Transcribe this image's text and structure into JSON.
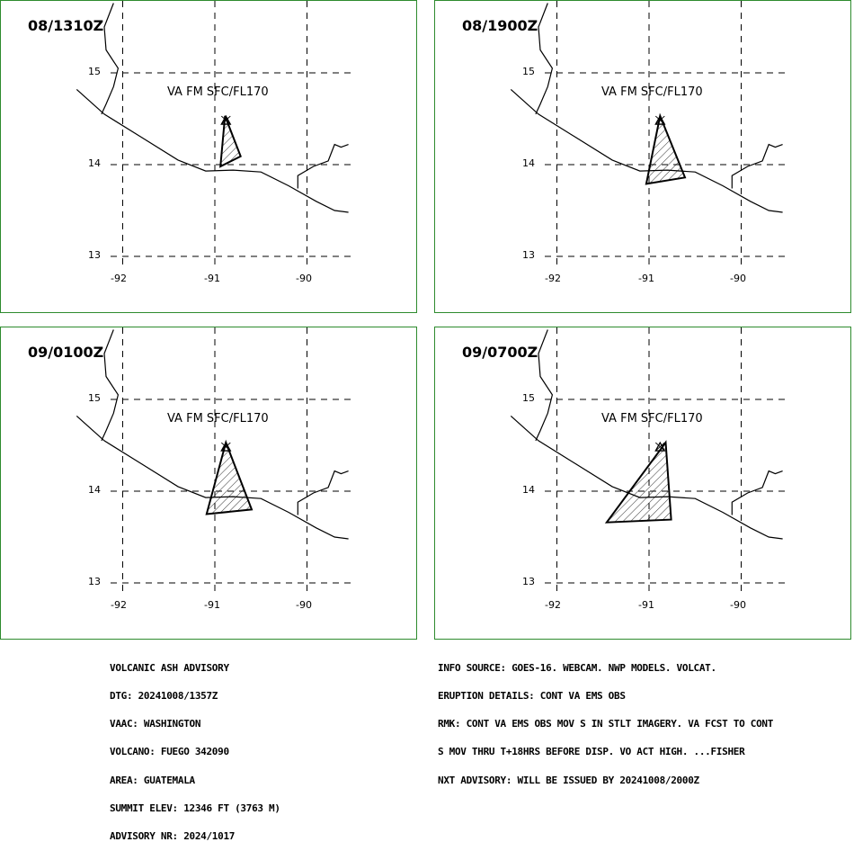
{
  "colors": {
    "border": "#2e8b2e",
    "lines": "#000000",
    "background": "#ffffff"
  },
  "panels": [
    {
      "time": "08/1310Z",
      "label": "VA FM SFC/FL170",
      "lat_labels": [
        "15",
        "14",
        "13"
      ],
      "lon_labels": [
        "-92",
        "-91",
        "-90"
      ],
      "ash_area": [
        [
          -90.89,
          14.53
        ],
        [
          -90.72,
          14.09
        ],
        [
          -90.94,
          13.98
        ]
      ]
    },
    {
      "time": "08/1900Z",
      "label": "VA FM SFC/FL170",
      "lat_labels": [
        "15",
        "14",
        "13"
      ],
      "lon_labels": [
        "-92",
        "-91",
        "-90"
      ],
      "ash_area": [
        [
          -90.88,
          14.53
        ],
        [
          -90.61,
          13.86
        ],
        [
          -91.03,
          13.79
        ]
      ]
    },
    {
      "time": "09/0100Z",
      "label": "VA FM SFC/FL170",
      "lat_labels": [
        "15",
        "14",
        "13"
      ],
      "lon_labels": [
        "-92",
        "-91",
        "-90"
      ],
      "ash_area": [
        [
          -90.88,
          14.53
        ],
        [
          -90.6,
          13.8
        ],
        [
          -91.09,
          13.75
        ]
      ]
    },
    {
      "time": "09/0700Z",
      "label": "VA FM SFC/FL170",
      "lat_labels": [
        "15",
        "14",
        "13"
      ],
      "lon_labels": [
        "-92",
        "-91",
        "-90"
      ],
      "ash_area": [
        [
          -90.82,
          14.53
        ],
        [
          -90.76,
          13.69
        ],
        [
          -91.46,
          13.66
        ]
      ]
    }
  ],
  "volcano": {
    "name": "FUEGO",
    "lon": -90.88,
    "lat": 14.47
  },
  "coastline": [
    [
      -92.5,
      14.82
    ],
    [
      -92.2,
      14.55
    ],
    [
      -91.8,
      14.3
    ],
    [
      -91.4,
      14.05
    ],
    [
      -91.1,
      13.93
    ],
    [
      -90.8,
      13.94
    ],
    [
      -90.5,
      13.92
    ],
    [
      -90.2,
      13.77
    ],
    [
      -89.9,
      13.6
    ],
    [
      -89.7,
      13.5
    ],
    [
      -89.55,
      13.48
    ]
  ],
  "border_mex_gtm": [
    [
      -92.1,
      15.76
    ],
    [
      -92.2,
      15.5
    ],
    [
      -92.18,
      15.25
    ],
    [
      -92.05,
      15.05
    ],
    [
      -92.1,
      14.85
    ],
    [
      -92.18,
      14.66
    ],
    [
      -92.23,
      14.55
    ]
  ],
  "border_gtm_slv": [
    [
      -89.55,
      14.22
    ],
    [
      -89.63,
      14.19
    ],
    [
      -89.7,
      14.22
    ],
    [
      -89.77,
      14.04
    ],
    [
      -89.93,
      13.98
    ],
    [
      -90.1,
      13.88
    ],
    [
      -90.1,
      13.74
    ]
  ],
  "advisory_left": [
    "VOLCANIC ASH ADVISORY",
    "DTG: 20241008/1357Z",
    "VAAC: WASHINGTON",
    "VOLCANO: FUEGO 342090",
    "AREA: GUATEMALA",
    "SUMMIT ELEV: 12346 FT (3763 M)",
    "ADVISORY NR: 2024/1017"
  ],
  "advisory_right": [
    "INFO SOURCE: GOES-16. WEBCAM. NWP MODELS. VOLCAT.",
    "ERUPTION DETAILS: CONT VA EMS OBS",
    "RMK: CONT VA EMS OBS MOV S IN STLT IMAGERY. VA FCST TO CONT",
    "S MOV THRU T+18HRS BEFORE DISP. VO ACT HIGH. ...FISHER",
    "NXT ADVISORY: WILL BE ISSUED BY 20241008/2000Z"
  ]
}
